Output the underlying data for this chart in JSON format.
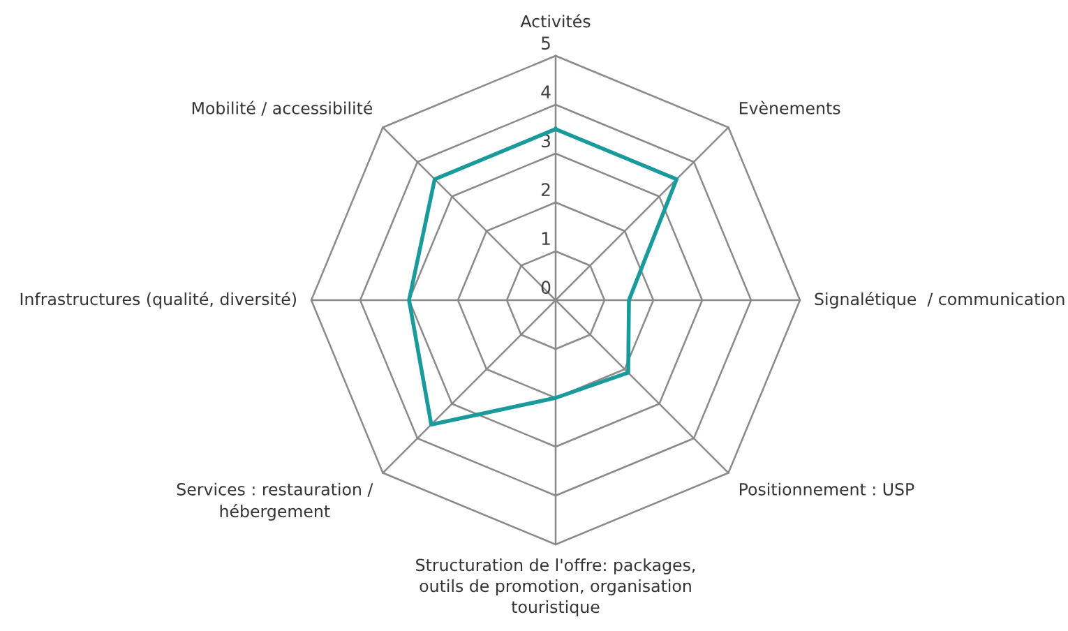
{
  "chart_data": {
    "type": "radar",
    "categories": [
      "Activités",
      "Evènements",
      "Signalétique  / communication",
      "Positionnement : USP",
      "Structuration de l'offre: packages,\noutils de promotion, organisation\ntouristique",
      "Services : restauration /\nhébergement",
      "Infrastructures (qualité, diversité)",
      "Mobilité / accessibilité"
    ],
    "series": [
      {
        "color": "#1a9a9a",
        "values": [
          3.5,
          3.5,
          1.5,
          2.1,
          2.0,
          3.6,
          3.0,
          3.5
        ]
      }
    ],
    "ylim": [
      0,
      5
    ],
    "yticks": [
      0,
      1,
      2,
      3,
      4,
      5
    ],
    "grid": true
  }
}
